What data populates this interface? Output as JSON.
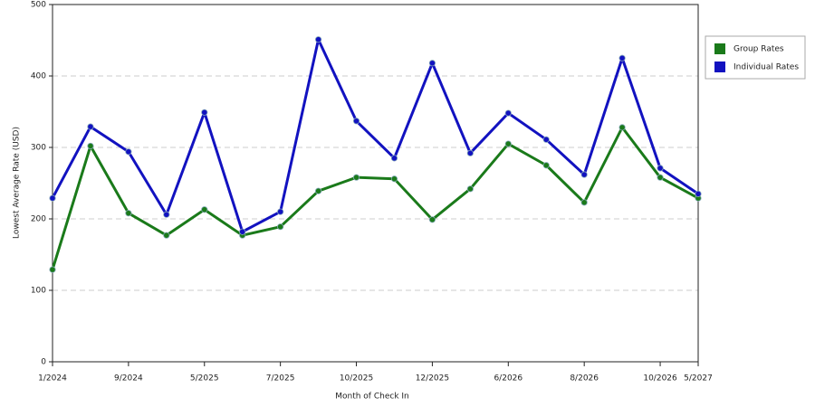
{
  "chart_data": {
    "type": "line",
    "x_label": "Month of Check In",
    "y_label": "Lowest Average Rate (USD)",
    "categories": [
      "1/2024",
      null,
      "9/2024",
      null,
      "5/2025",
      null,
      "7/2025",
      null,
      "10/2025",
      null,
      "12/2025",
      null,
      "6/2026",
      null,
      "8/2026",
      null,
      "10/2026",
      "5/2027"
    ],
    "series": [
      {
        "name": "Group Rates",
        "color": "#1a7a1a",
        "values": [
          129,
          302,
          208,
          177,
          213,
          177,
          189,
          239,
          258,
          256,
          199,
          242,
          305,
          275,
          223,
          328,
          258,
          229
        ]
      },
      {
        "name": "Individual Rates",
        "color": "#1212c0",
        "values": [
          229,
          329,
          294,
          206,
          349,
          182,
          210,
          451,
          337,
          285,
          418,
          292,
          348,
          311,
          262,
          425,
          271,
          235
        ]
      }
    ],
    "ylim": [
      0,
      500
    ],
    "yticks": [
      0,
      100,
      200,
      300,
      400,
      500
    ],
    "grid": true,
    "legend": "right"
  }
}
